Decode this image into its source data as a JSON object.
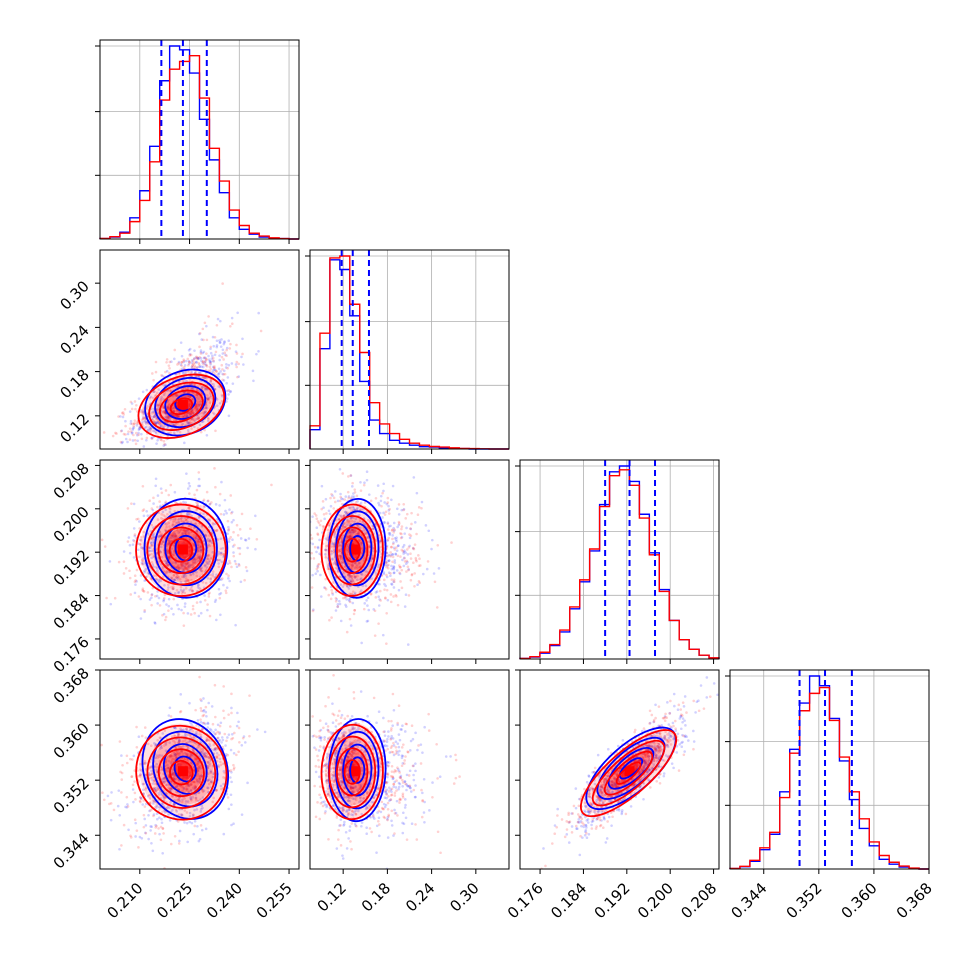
{
  "chart_data": {
    "type": "corner",
    "colors": {
      "series_a": "#0000ff",
      "series_b": "#ff0000",
      "grid": "#b0b0b0",
      "axes": "#000000"
    },
    "series": [
      {
        "color": "#0000ff"
      },
      {
        "color": "#ff0000"
      }
    ],
    "parameters": [
      {
        "range": [
          0.198,
          0.258
        ],
        "ticks": [
          0.21,
          0.225,
          0.24,
          0.255
        ],
        "tick_labels": [
          "0.210",
          "0.225",
          "0.240",
          "0.255"
        ],
        "mean": 0.223,
        "sd": 0.0065,
        "quantiles": [
          0.2165,
          0.223,
          0.2302
        ]
      },
      {
        "range": [
          0.075,
          0.345
        ],
        "ticks": [
          0.12,
          0.18,
          0.24,
          0.3
        ],
        "tick_labels": [
          "0.12",
          "0.18",
          "0.24",
          "0.30"
        ],
        "mean": 0.135,
        "sd": 0.02,
        "quantiles": [
          0.118,
          0.133,
          0.155
        ]
      },
      {
        "range": [
          0.1723,
          0.209
        ],
        "ticks": [
          0.176,
          0.184,
          0.192,
          0.2,
          0.208
        ],
        "tick_labels": [
          "0.176",
          "0.184",
          "0.192",
          "0.200",
          "0.208"
        ],
        "mean": 0.1925,
        "sd": 0.0043,
        "quantiles": [
          0.188,
          0.1925,
          0.1972
        ]
      },
      {
        "range": [
          0.3391,
          0.368
        ],
        "ticks": [
          0.344,
          0.352,
          0.36,
          0.368
        ],
        "tick_labels": [
          "0.344",
          "0.352",
          "0.360",
          "0.368"
        ],
        "mean": 0.3533,
        "sd": 0.0035,
        "quantiles": [
          0.3492,
          0.3529,
          0.3568
        ]
      }
    ],
    "correlations": [
      {
        "pair": [
          0,
          1
        ],
        "rho": 0.6
      },
      {
        "pair": [
          0,
          2
        ],
        "rho": 0.05
      },
      {
        "pair": [
          1,
          2
        ],
        "rho": -0.05
      },
      {
        "pair": [
          0,
          3
        ],
        "rho": 0.35
      },
      {
        "pair": [
          1,
          3
        ],
        "rho": -0.05
      },
      {
        "pair": [
          2,
          3
        ],
        "rho": 0.85
      }
    ],
    "histograms": {
      "bins": 20,
      "ticks": [
        0.33,
        0.66,
        1.0
      ],
      "param0_blue": [
        0.002,
        0.01,
        0.035,
        0.11,
        0.25,
        0.48,
        0.82,
        1.0,
        0.98,
        0.86,
        0.62,
        0.41,
        0.24,
        0.11,
        0.05,
        0.025,
        0.01,
        0.004,
        0.002,
        0.0
      ],
      "param0_red": [
        0.003,
        0.012,
        0.03,
        0.09,
        0.2,
        0.4,
        0.72,
        0.88,
        0.92,
        0.95,
        0.73,
        0.47,
        0.3,
        0.15,
        0.07,
        0.03,
        0.015,
        0.006,
        0.002,
        0.0
      ],
      "param1_blue": [
        0.1,
        0.52,
        0.98,
        0.93,
        0.69,
        0.35,
        0.15,
        0.08,
        0.045,
        0.03,
        0.02,
        0.012,
        0.01,
        0.006,
        0.004,
        0.002,
        0.0,
        0.0,
        0.0,
        0.0
      ],
      "param1_red": [
        0.12,
        0.6,
        0.99,
        1.0,
        0.75,
        0.5,
        0.24,
        0.13,
        0.08,
        0.05,
        0.03,
        0.02,
        0.013,
        0.01,
        0.006,
        0.003,
        0.002,
        0.001,
        0.0,
        0.0
      ],
      "param2_blue": [
        0.003,
        0.01,
        0.03,
        0.07,
        0.14,
        0.26,
        0.4,
        0.56,
        0.8,
        0.97,
        1.0,
        0.92,
        0.75,
        0.55,
        0.36,
        0.2,
        0.1,
        0.05,
        0.02,
        0.005
      ],
      "param2_red": [
        0.003,
        0.012,
        0.035,
        0.075,
        0.15,
        0.27,
        0.41,
        0.57,
        0.79,
        0.95,
        0.98,
        0.9,
        0.73,
        0.54,
        0.35,
        0.2,
        0.1,
        0.05,
        0.02,
        0.006
      ],
      "param3_blue": [
        0.002,
        0.012,
        0.04,
        0.1,
        0.18,
        0.4,
        0.62,
        0.86,
        1.0,
        0.95,
        0.78,
        0.56,
        0.36,
        0.21,
        0.12,
        0.05,
        0.025,
        0.01,
        0.004,
        0.0
      ],
      "param3_red": [
        0.003,
        0.014,
        0.045,
        0.11,
        0.19,
        0.37,
        0.6,
        0.82,
        0.91,
        0.94,
        0.77,
        0.58,
        0.4,
        0.26,
        0.14,
        0.07,
        0.035,
        0.015,
        0.005,
        0.0
      ]
    },
    "contour_levels": [
      0.118,
      0.393,
      0.675,
      0.865
    ],
    "grid": true,
    "legend": "none"
  }
}
